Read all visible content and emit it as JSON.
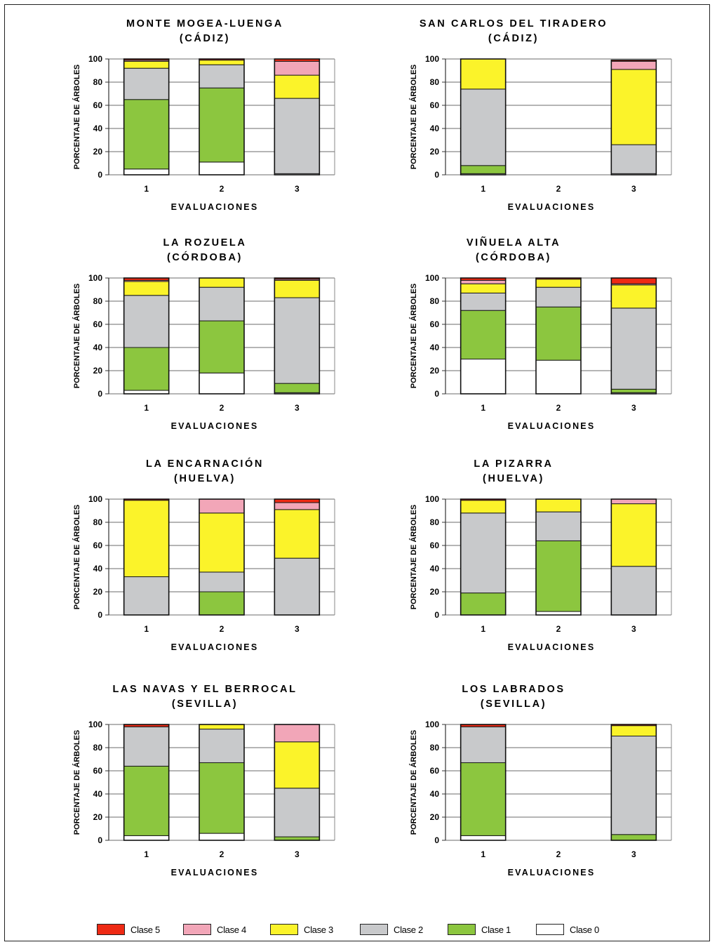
{
  "axis": {
    "ylabel": "PORCENTAJE DE ÁRBOLES",
    "xlabel": "EVALUACIONES",
    "yticks": [
      "0",
      "20",
      "40",
      "60",
      "80",
      "100"
    ],
    "xticks": [
      "1",
      "2",
      "3"
    ]
  },
  "legend": [
    {
      "label": "Clase 5",
      "color": "#ee2a14"
    },
    {
      "label": "Clase 4",
      "color": "#f2a6b8"
    },
    {
      "label": "Clase 3",
      "color": "#fbf32a"
    },
    {
      "label": "Clase 2",
      "color": "#c8c9cb"
    },
    {
      "label": "Clase 1",
      "color": "#8cc63f"
    },
    {
      "label": "Clase 0",
      "color": "#ffffff"
    }
  ],
  "chart_data": [
    {
      "type": "bar",
      "title": "MONTE MOGEA-LUENGA",
      "subtitle": "(CÁDIZ)",
      "xlabel": "EVALUACIONES",
      "ylabel": "PORCENTAJE DE ÁRBOLES",
      "ylim": [
        0,
        100
      ],
      "categories": [
        "1",
        "2",
        "3"
      ],
      "series": [
        {
          "name": "Clase 0",
          "values": [
            5,
            11,
            1
          ]
        },
        {
          "name": "Clase 1",
          "values": [
            60,
            64,
            0
          ]
        },
        {
          "name": "Clase 2",
          "values": [
            27,
            20,
            65
          ]
        },
        {
          "name": "Clase 3",
          "values": [
            6,
            4,
            20
          ]
        },
        {
          "name": "Clase 4",
          "values": [
            1,
            0,
            12
          ]
        },
        {
          "name": "Clase 5",
          "values": [
            1,
            1,
            2
          ]
        }
      ]
    },
    {
      "type": "bar",
      "title": "SAN CARLOS DEL TIRADERO",
      "subtitle": "(CÁDIZ)",
      "xlabel": "EVALUACIONES",
      "ylabel": "PORCENTAJE DE ÁRBOLES",
      "ylim": [
        0,
        100
      ],
      "categories": [
        "1",
        "2",
        "3"
      ],
      "series": [
        {
          "name": "Clase 0",
          "values": [
            1,
            null,
            1
          ]
        },
        {
          "name": "Clase 1",
          "values": [
            7,
            null,
            0
          ]
        },
        {
          "name": "Clase 2",
          "values": [
            66,
            null,
            25
          ]
        },
        {
          "name": "Clase 3",
          "values": [
            26,
            null,
            65
          ]
        },
        {
          "name": "Clase 4",
          "values": [
            0,
            null,
            7
          ]
        },
        {
          "name": "Clase 5",
          "values": [
            0,
            null,
            1
          ]
        }
      ]
    },
    {
      "type": "bar",
      "title": "LA ROZUELA",
      "subtitle": "(CÓRDOBA)",
      "xlabel": "EVALUACIONES",
      "ylabel": "PORCENTAJE DE ÁRBOLES",
      "ylim": [
        0,
        100
      ],
      "categories": [
        "1",
        "2",
        "3"
      ],
      "series": [
        {
          "name": "Clase 0",
          "values": [
            3,
            18,
            1
          ]
        },
        {
          "name": "Clase 1",
          "values": [
            37,
            45,
            8
          ]
        },
        {
          "name": "Clase 2",
          "values": [
            45,
            29,
            74
          ]
        },
        {
          "name": "Clase 3",
          "values": [
            12,
            8,
            15
          ]
        },
        {
          "name": "Clase 4",
          "values": [
            1,
            0,
            1
          ]
        },
        {
          "name": "Clase 5",
          "values": [
            2,
            0,
            1
          ]
        }
      ]
    },
    {
      "type": "bar",
      "title": "VIÑUELA ALTA",
      "subtitle": "(CÓRDOBA)",
      "xlabel": "EVALUACIONES",
      "ylabel": "PORCENTAJE DE ÁRBOLES",
      "ylim": [
        0,
        100
      ],
      "categories": [
        "1",
        "2",
        "3"
      ],
      "series": [
        {
          "name": "Clase 0",
          "values": [
            30,
            29,
            1
          ]
        },
        {
          "name": "Clase 1",
          "values": [
            42,
            46,
            3
          ]
        },
        {
          "name": "Clase 2",
          "values": [
            15,
            17,
            70
          ]
        },
        {
          "name": "Clase 3",
          "values": [
            8,
            7,
            20
          ]
        },
        {
          "name": "Clase 4",
          "values": [
            3,
            0,
            1
          ]
        },
        {
          "name": "Clase 5",
          "values": [
            2,
            1,
            5
          ]
        }
      ]
    },
    {
      "type": "bar",
      "title": "LA ENCARNACIÓN",
      "subtitle": "(HUELVA)",
      "xlabel": "EVALUACIONES",
      "ylabel": "PORCENTAJE DE ÁRBOLES",
      "ylim": [
        0,
        100
      ],
      "categories": [
        "1",
        "2",
        "3"
      ],
      "series": [
        {
          "name": "Clase 0",
          "values": [
            0,
            0,
            0
          ]
        },
        {
          "name": "Clase 1",
          "values": [
            0,
            20,
            0
          ]
        },
        {
          "name": "Clase 2",
          "values": [
            33,
            17,
            49
          ]
        },
        {
          "name": "Clase 3",
          "values": [
            66,
            51,
            42
          ]
        },
        {
          "name": "Clase 4",
          "values": [
            0,
            12,
            6
          ]
        },
        {
          "name": "Clase 5",
          "values": [
            1,
            0,
            3
          ]
        }
      ]
    },
    {
      "type": "bar",
      "title": "LA PIZARRA",
      "subtitle": "(HUELVA)",
      "xlabel": "EVALUACIONES",
      "ylabel": "PORCENTAJE DE ÁRBOLES",
      "ylim": [
        0,
        100
      ],
      "categories": [
        "1",
        "2",
        "3"
      ],
      "series": [
        {
          "name": "Clase 0",
          "values": [
            0,
            3,
            0
          ]
        },
        {
          "name": "Clase 1",
          "values": [
            19,
            61,
            0
          ]
        },
        {
          "name": "Clase 2",
          "values": [
            69,
            25,
            42
          ]
        },
        {
          "name": "Clase 3",
          "values": [
            11,
            11,
            54
          ]
        },
        {
          "name": "Clase 4",
          "values": [
            0,
            0,
            4
          ]
        },
        {
          "name": "Clase 5",
          "values": [
            1,
            0,
            0
          ]
        }
      ]
    },
    {
      "type": "bar",
      "title": "LAS NAVAS Y EL BERROCAL",
      "subtitle": "(SEVILLA)",
      "xlabel": "EVALUACIONES",
      "ylabel": "PORCENTAJE DE ÁRBOLES",
      "ylim": [
        0,
        100
      ],
      "categories": [
        "1",
        "2",
        "3"
      ],
      "series": [
        {
          "name": "Clase 0",
          "values": [
            4,
            6,
            0
          ]
        },
        {
          "name": "Clase 1",
          "values": [
            60,
            61,
            3
          ]
        },
        {
          "name": "Clase 2",
          "values": [
            34,
            29,
            42
          ]
        },
        {
          "name": "Clase 3",
          "values": [
            0,
            4,
            40
          ]
        },
        {
          "name": "Clase 4",
          "values": [
            0,
            0,
            15
          ]
        },
        {
          "name": "Clase 5",
          "values": [
            2,
            0,
            0
          ]
        }
      ]
    },
    {
      "type": "bar",
      "title": "LOS LABRADOS",
      "subtitle": "(SEVILLA)",
      "xlabel": "EVALUACIONES",
      "ylabel": "PORCENTAJE DE ÁRBOLES",
      "ylim": [
        0,
        100
      ],
      "categories": [
        "1",
        "2",
        "3"
      ],
      "series": [
        {
          "name": "Clase 0",
          "values": [
            4,
            null,
            0
          ]
        },
        {
          "name": "Clase 1",
          "values": [
            63,
            null,
            5
          ]
        },
        {
          "name": "Clase 2",
          "values": [
            31,
            null,
            85
          ]
        },
        {
          "name": "Clase 3",
          "values": [
            0,
            null,
            9
          ]
        },
        {
          "name": "Clase 4",
          "values": [
            0,
            null,
            0
          ]
        },
        {
          "name": "Clase 5",
          "values": [
            2,
            null,
            1
          ]
        }
      ]
    }
  ]
}
